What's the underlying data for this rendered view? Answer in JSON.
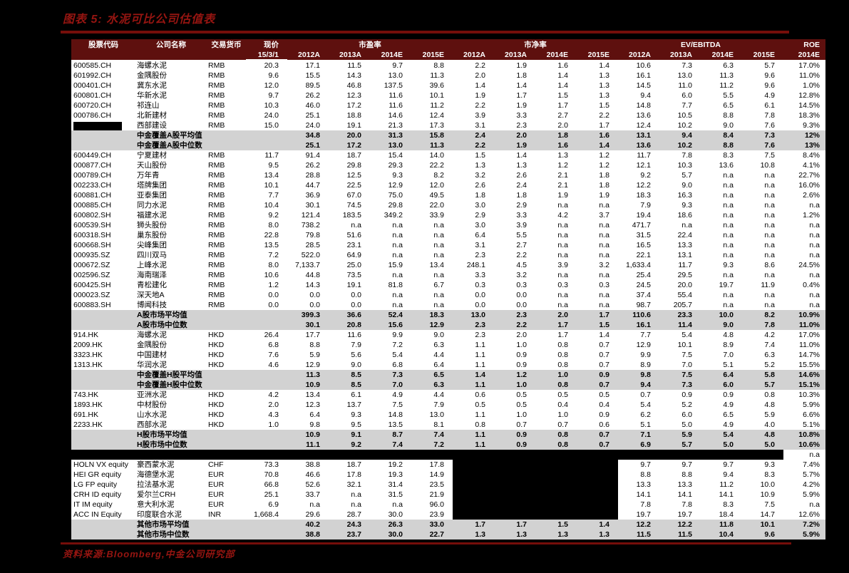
{
  "title": "图表 5: 水泥可比公司估值表",
  "source": "资料来源:Bloomberg,中金公司研究部",
  "colors": {
    "page_background": "#000000",
    "accent_red": "#961511",
    "rule_red": "#750e0a",
    "header_maroon": "#5e100e",
    "subtotal_gray": "#d2d2d2"
  },
  "table": {
    "header": {
      "code": "股票代码",
      "name": "公司名称",
      "currency": "交易货币",
      "price_line1": "现价",
      "price_line2": "15/3/1",
      "group_pe": "市盈率",
      "group_pb": "市净率",
      "group_ev": "EV/EBITDA",
      "roe": "ROE",
      "roe_year": "2014E",
      "years": [
        "2012A",
        "2013A",
        "2014E",
        "2015E"
      ]
    },
    "rows": [
      {
        "t": "d",
        "code": "600585.CH",
        "name": "海螺水泥",
        "cur": "RMB",
        "v": [
          "20.3",
          "17.1",
          "11.5",
          "9.7",
          "8.8",
          "2.2",
          "1.9",
          "1.6",
          "1.4",
          "10.6",
          "7.3",
          "6.3",
          "5.7",
          "17.0%"
        ]
      },
      {
        "t": "d",
        "code": "601992.CH",
        "name": "金隅股份",
        "cur": "RMB",
        "v": [
          "9.6",
          "15.5",
          "14.3",
          "13.0",
          "11.3",
          "2.0",
          "1.8",
          "1.4",
          "1.3",
          "16.1",
          "13.0",
          "11.3",
          "9.6",
          "11.0%"
        ]
      },
      {
        "t": "d",
        "code": "000401.CH",
        "name": "冀东水泥",
        "cur": "RMB",
        "v": [
          "12.0",
          "89.5",
          "46.8",
          "137.5",
          "39.6",
          "1.4",
          "1.4",
          "1.4",
          "1.3",
          "14.5",
          "11.0",
          "11.2",
          "9.6",
          "1.0%"
        ]
      },
      {
        "t": "d",
        "code": "600801.CH",
        "name": "华新水泥",
        "cur": "RMB",
        "v": [
          "9.7",
          "26.2",
          "12.3",
          "11.6",
          "10.1",
          "1.9",
          "1.7",
          "1.5",
          "1.3",
          "9.4",
          "6.0",
          "5.5",
          "4.9",
          "12.8%"
        ]
      },
      {
        "t": "d",
        "code": "600720.CH",
        "name": "祁连山",
        "cur": "RMB",
        "v": [
          "10.3",
          "46.0",
          "17.2",
          "11.6",
          "11.2",
          "2.2",
          "1.9",
          "1.7",
          "1.5",
          "14.8",
          "7.7",
          "6.5",
          "6.1",
          "14.5%"
        ]
      },
      {
        "t": "d",
        "code": "000786.CH",
        "name": "北新建材",
        "cur": "RMB",
        "v": [
          "24.0",
          "25.1",
          "18.8",
          "14.6",
          "12.4",
          "3.9",
          "3.3",
          "2.7",
          "2.2",
          "13.6",
          "10.5",
          "8.8",
          "7.8",
          "18.3%"
        ]
      },
      {
        "t": "d",
        "code": "",
        "codeBlack": true,
        "name": "西部建设",
        "cur": "RMB",
        "v": [
          "15.0",
          "24.0",
          "19.1",
          "21.3",
          "17.3",
          "3.1",
          "2.3",
          "2.0",
          "1.7",
          "12.4",
          "10.2",
          "9.0",
          "7.6",
          "9.3%"
        ]
      },
      {
        "t": "s",
        "label": "中金覆盖A股平均值",
        "v": [
          "",
          "34.8",
          "20.0",
          "31.3",
          "15.8",
          "2.4",
          "2.0",
          "1.8",
          "1.6",
          "13.1",
          "9.4",
          "8.4",
          "7.3",
          "12%"
        ]
      },
      {
        "t": "s",
        "label": "中金覆盖A股中位数",
        "v": [
          "",
          "25.1",
          "17.2",
          "13.0",
          "11.3",
          "2.2",
          "1.9",
          "1.6",
          "1.4",
          "13.6",
          "10.2",
          "8.8",
          "7.6",
          "13%"
        ]
      },
      {
        "t": "d",
        "code": "600449.CH",
        "name": "宁夏建材",
        "cur": "RMB",
        "v": [
          "11.7",
          "91.4",
          "18.7",
          "15.4",
          "14.0",
          "1.5",
          "1.4",
          "1.3",
          "1.2",
          "11.7",
          "7.8",
          "8.3",
          "7.5",
          "8.4%"
        ]
      },
      {
        "t": "d",
        "code": "000877.CH",
        "name": "天山股份",
        "cur": "RMB",
        "v": [
          "9.5",
          "26.2",
          "29.8",
          "29.3",
          "22.2",
          "1.3",
          "1.3",
          "1.2",
          "1.2",
          "12.1",
          "10.3",
          "13.6",
          "10.8",
          "4.1%"
        ]
      },
      {
        "t": "d",
        "code": "000789.CH",
        "name": "万年青",
        "cur": "RMB",
        "v": [
          "13.4",
          "28.8",
          "12.5",
          "9.3",
          "8.2",
          "3.2",
          "2.6",
          "2.1",
          "1.8",
          "9.2",
          "5.7",
          "n.a",
          "n.a",
          "22.7%"
        ]
      },
      {
        "t": "d",
        "code": "002233.CH",
        "name": "塔牌集团",
        "cur": "RMB",
        "v": [
          "10.1",
          "44.7",
          "22.5",
          "12.9",
          "12.0",
          "2.6",
          "2.4",
          "2.1",
          "1.8",
          "12.2",
          "9.0",
          "n.a",
          "n.a",
          "16.0%"
        ]
      },
      {
        "t": "d",
        "code": "600881.CH",
        "name": "亚泰集团",
        "cur": "RMB",
        "v": [
          "7.7",
          "36.9",
          "67.0",
          "75.0",
          "49.5",
          "1.8",
          "1.8",
          "1.9",
          "1.9",
          "18.3",
          "16.3",
          "n.a",
          "n.a",
          "2.6%"
        ]
      },
      {
        "t": "d",
        "code": "000885.CH",
        "name": "同力水泥",
        "cur": "RMB",
        "v": [
          "10.4",
          "30.1",
          "74.5",
          "29.8",
          "22.0",
          "3.0",
          "2.9",
          "n.a",
          "n.a",
          "7.9",
          "9.3",
          "n.a",
          "n.a",
          "n.a"
        ]
      },
      {
        "t": "d",
        "code": "600802.SH",
        "name": "福建水泥",
        "cur": "RMB",
        "v": [
          "9.2",
          "121.4",
          "183.5",
          "349.2",
          "33.9",
          "2.9",
          "3.3",
          "4.2",
          "3.7",
          "19.4",
          "18.6",
          "n.a",
          "n.a",
          "1.2%"
        ]
      },
      {
        "t": "d",
        "code": "600539.SH",
        "name": "狮头股份",
        "cur": "RMB",
        "v": [
          "8.0",
          "738.2",
          "n.a",
          "n.a",
          "n.a",
          "3.0",
          "3.9",
          "n.a",
          "n.a",
          "471.7",
          "n.a",
          "n.a",
          "n.a",
          "n.a"
        ]
      },
      {
        "t": "d",
        "code": "600318.SH",
        "name": "巢东股份",
        "cur": "RMB",
        "v": [
          "22.8",
          "79.8",
          "51.6",
          "n.a",
          "n.a",
          "6.4",
          "5.5",
          "n.a",
          "n.a",
          "31.5",
          "22.4",
          "n.a",
          "n.a",
          "n.a"
        ]
      },
      {
        "t": "d",
        "code": "600668.SH",
        "name": "尖峰集团",
        "cur": "RMB",
        "v": [
          "13.5",
          "28.5",
          "23.1",
          "n.a",
          "n.a",
          "3.1",
          "2.7",
          "n.a",
          "n.a",
          "16.5",
          "13.3",
          "n.a",
          "n.a",
          "n.a"
        ]
      },
      {
        "t": "d",
        "code": "000935.SZ",
        "name": "四川双马",
        "cur": "RMB",
        "v": [
          "7.2",
          "522.0",
          "64.9",
          "n.a",
          "n.a",
          "2.3",
          "2.2",
          "n.a",
          "n.a",
          "22.1",
          "13.1",
          "n.a",
          "n.a",
          "n.a"
        ]
      },
      {
        "t": "d",
        "code": "000672.SZ",
        "name": "上峰水泥",
        "cur": "RMB",
        "v": [
          "8.0",
          "7,133.7",
          "25.0",
          "15.9",
          "13.4",
          "248.1",
          "4.5",
          "3.9",
          "3.2",
          "1,633.4",
          "11.7",
          "9.3",
          "8.6",
          "24.5%"
        ]
      },
      {
        "t": "d",
        "code": "002596.SZ",
        "name": "海南瑞泽",
        "cur": "RMB",
        "v": [
          "10.6",
          "44.8",
          "73.5",
          "n.a",
          "n.a",
          "3.3",
          "3.2",
          "n.a",
          "n.a",
          "25.4",
          "29.5",
          "n.a",
          "n.a",
          "n.a"
        ]
      },
      {
        "t": "d",
        "code": "600425.SH",
        "name": "青松建化",
        "cur": "RMB",
        "v": [
          "1.2",
          "14.3",
          "19.1",
          "81.8",
          "6.7",
          "0.3",
          "0.3",
          "0.3",
          "0.3",
          "24.5",
          "20.0",
          "19.7",
          "11.9",
          "0.4%"
        ]
      },
      {
        "t": "d",
        "code": "000023.SZ",
        "name": "深天地A",
        "cur": "RMB",
        "v": [
          "0.0",
          "0.0",
          "0.0",
          "n.a",
          "n.a",
          "0.0",
          "0.0",
          "n.a",
          "n.a",
          "37.4",
          "55.4",
          "n.a",
          "n.a",
          "n.a"
        ]
      },
      {
        "t": "d",
        "code": "600883.SH",
        "name": "博闻科技",
        "cur": "RMB",
        "v": [
          "0.0",
          "0.0",
          "0.0",
          "n.a",
          "n.a",
          "0.0",
          "0.0",
          "n.a",
          "n.a",
          "98.7",
          "205.7",
          "n.a",
          "n.a",
          "n.a"
        ]
      },
      {
        "t": "s",
        "label": "A股市场平均值",
        "v": [
          "",
          "399.3",
          "36.6",
          "52.4",
          "18.3",
          "13.0",
          "2.3",
          "2.0",
          "1.7",
          "110.6",
          "23.3",
          "10.0",
          "8.2",
          "10.9%"
        ]
      },
      {
        "t": "s",
        "label": "A股市场中位数",
        "v": [
          "",
          "30.1",
          "20.8",
          "15.6",
          "12.9",
          "2.3",
          "2.2",
          "1.7",
          "1.5",
          "16.1",
          "11.4",
          "9.0",
          "7.8",
          "11.0%"
        ]
      },
      {
        "t": "d",
        "code": "914.HK",
        "name": "海螺水泥",
        "cur": "HKD",
        "v": [
          "26.4",
          "17.7",
          "11.6",
          "9.9",
          "9.0",
          "2.3",
          "2.0",
          "1.7",
          "1.4",
          "7.7",
          "5.4",
          "4.8",
          "4.2",
          "17.0%"
        ]
      },
      {
        "t": "d",
        "code": "2009.HK",
        "name": "金隅股份",
        "cur": "HKD",
        "v": [
          "6.8",
          "8.8",
          "7.9",
          "7.2",
          "6.3",
          "1.1",
          "1.0",
          "0.8",
          "0.7",
          "12.9",
          "10.1",
          "8.9",
          "7.4",
          "11.0%"
        ]
      },
      {
        "t": "d",
        "code": "3323.HK",
        "name": "中国建材",
        "cur": "HKD",
        "v": [
          "7.6",
          "5.9",
          "5.6",
          "5.4",
          "4.4",
          "1.1",
          "0.9",
          "0.8",
          "0.7",
          "9.9",
          "7.5",
          "7.0",
          "6.3",
          "14.7%"
        ]
      },
      {
        "t": "d",
        "code": "1313.HK",
        "name": "华润水泥",
        "cur": "HKD",
        "v": [
          "4.6",
          "12.9",
          "9.0",
          "6.8",
          "6.4",
          "1.1",
          "0.9",
          "0.8",
          "0.7",
          "8.9",
          "7.0",
          "5.1",
          "5.2",
          "15.5%"
        ]
      },
      {
        "t": "s",
        "label": "中金覆盖H股平均值",
        "v": [
          "",
          "11.3",
          "8.5",
          "7.3",
          "6.5",
          "1.4",
          "1.2",
          "1.0",
          "0.9",
          "9.8",
          "7.5",
          "6.4",
          "5.8",
          "14.6%"
        ]
      },
      {
        "t": "s",
        "label": "中金覆盖H股中位数",
        "v": [
          "",
          "10.9",
          "8.5",
          "7.0",
          "6.3",
          "1.1",
          "1.0",
          "0.8",
          "0.7",
          "9.4",
          "7.3",
          "6.0",
          "5.7",
          "15.1%"
        ]
      },
      {
        "t": "d",
        "code": "743.HK",
        "name": "亚洲水泥",
        "cur": "HKD",
        "v": [
          "4.2",
          "13.4",
          "6.1",
          "4.9",
          "4.4",
          "0.6",
          "0.5",
          "0.5",
          "0.5",
          "0.7",
          "0.9",
          "0.9",
          "0.8",
          "10.3%"
        ]
      },
      {
        "t": "d",
        "code": "1893.HK",
        "name": "中材股份",
        "cur": "HKD",
        "v": [
          "2.0",
          "12.3",
          "13.7",
          "7.5",
          "7.9",
          "0.5",
          "0.5",
          "0.4",
          "0.4",
          "5.4",
          "5.2",
          "4.9",
          "4.8",
          "5.9%"
        ]
      },
      {
        "t": "d",
        "code": "691.HK",
        "name": "山水水泥",
        "cur": "HKD",
        "v": [
          "4.3",
          "6.4",
          "9.3",
          "14.8",
          "13.0",
          "1.1",
          "1.0",
          "1.0",
          "0.9",
          "6.2",
          "6.0",
          "6.5",
          "5.9",
          "6.6%"
        ]
      },
      {
        "t": "d",
        "code": "2233.HK",
        "name": "西部水泥",
        "cur": "HKD",
        "v": [
          "1.0",
          "9.8",
          "9.5",
          "13.5",
          "8.1",
          "0.8",
          "0.7",
          "0.7",
          "0.6",
          "5.1",
          "5.0",
          "4.9",
          "4.0",
          "5.1%"
        ]
      },
      {
        "t": "s",
        "label": "H股市场平均值",
        "v": [
          "",
          "10.9",
          "9.1",
          "8.7",
          "7.4",
          "1.1",
          "0.9",
          "0.8",
          "0.7",
          "7.1",
          "5.9",
          "5.4",
          "4.8",
          "10.8%"
        ]
      },
      {
        "t": "s",
        "label": "H股市场中位数",
        "v": [
          "",
          "11.1",
          "9.2",
          "7.4",
          "7.2",
          "1.1",
          "0.9",
          "0.8",
          "0.7",
          "6.9",
          "5.7",
          "5.0",
          "5.0",
          "10.6%"
        ]
      },
      {
        "t": "b",
        "v": [
          "",
          "",
          "",
          "",
          "",
          "",
          "",
          "",
          "",
          "",
          "",
          "",
          "",
          "n.a"
        ]
      },
      {
        "t": "d",
        "code": "HOLN VX equity",
        "name": "豪西蒙水泥",
        "cur": "CHF",
        "blk": [
          5,
          6,
          7,
          8
        ],
        "v": [
          "73.3",
          "38.8",
          "18.7",
          "19.2",
          "17.8",
          "",
          "",
          "",
          "",
          "9.7",
          "9.7",
          "9.7",
          "9.3",
          "7.4%"
        ]
      },
      {
        "t": "d",
        "code": "HEI GR equity",
        "name": "海德堡水泥",
        "cur": "EUR",
        "blk": [
          5,
          6,
          7,
          8
        ],
        "v": [
          "70.8",
          "46.6",
          "17.8",
          "19.3",
          "14.9",
          "",
          "",
          "",
          "",
          "8.8",
          "8.8",
          "9.4",
          "8.3",
          "5.7%"
        ]
      },
      {
        "t": "d",
        "code": "LG FP equity",
        "name": "拉法基水泥",
        "cur": "EUR",
        "blk": [
          5,
          6,
          7,
          8
        ],
        "v": [
          "66.8",
          "52.6",
          "32.1",
          "31.4",
          "23.5",
          "",
          "",
          "",
          "",
          "13.3",
          "13.3",
          "11.2",
          "10.0",
          "4.2%"
        ]
      },
      {
        "t": "d",
        "code": "CRH ID equity",
        "name": "爱尔兰CRH",
        "cur": "EUR",
        "blk": [
          5,
          6,
          7,
          8
        ],
        "v": [
          "25.1",
          "33.7",
          "n.a",
          "31.5",
          "21.9",
          "",
          "",
          "",
          "",
          "14.1",
          "14.1",
          "14.1",
          "10.9",
          "5.9%"
        ]
      },
      {
        "t": "d",
        "code": "IT IM equity",
        "name": "意大利水泥",
        "cur": "EUR",
        "blk": [
          5,
          6,
          7,
          8
        ],
        "v": [
          "6.9",
          "n.a",
          "n.a",
          "n.a",
          "96.0",
          "",
          "",
          "",
          "",
          "7.8",
          "7.8",
          "8.3",
          "7.5",
          "n.a"
        ]
      },
      {
        "t": "d",
        "code": "ACC IN Equity",
        "name": "印度联合水泥",
        "cur": "INR",
        "blk": [
          5,
          6,
          7,
          8
        ],
        "v": [
          "1,668.4",
          "29.6",
          "28.7",
          "30.0",
          "23.9",
          "",
          "",
          "",
          "",
          "19.7",
          "19.7",
          "18.4",
          "14.7",
          "12.6%"
        ]
      },
      {
        "t": "s",
        "label": "其他市场平均值",
        "v": [
          "",
          "40.2",
          "24.3",
          "26.3",
          "33.0",
          "1.7",
          "1.7",
          "1.5",
          "1.4",
          "12.2",
          "12.2",
          "11.8",
          "10.1",
          "7.2%"
        ]
      },
      {
        "t": "s",
        "label": "其他市场中位数",
        "v": [
          "",
          "38.8",
          "23.7",
          "30.0",
          "22.7",
          "1.3",
          "1.3",
          "1.3",
          "1.3",
          "11.5",
          "11.5",
          "10.4",
          "9.6",
          "5.9%"
        ]
      }
    ]
  }
}
